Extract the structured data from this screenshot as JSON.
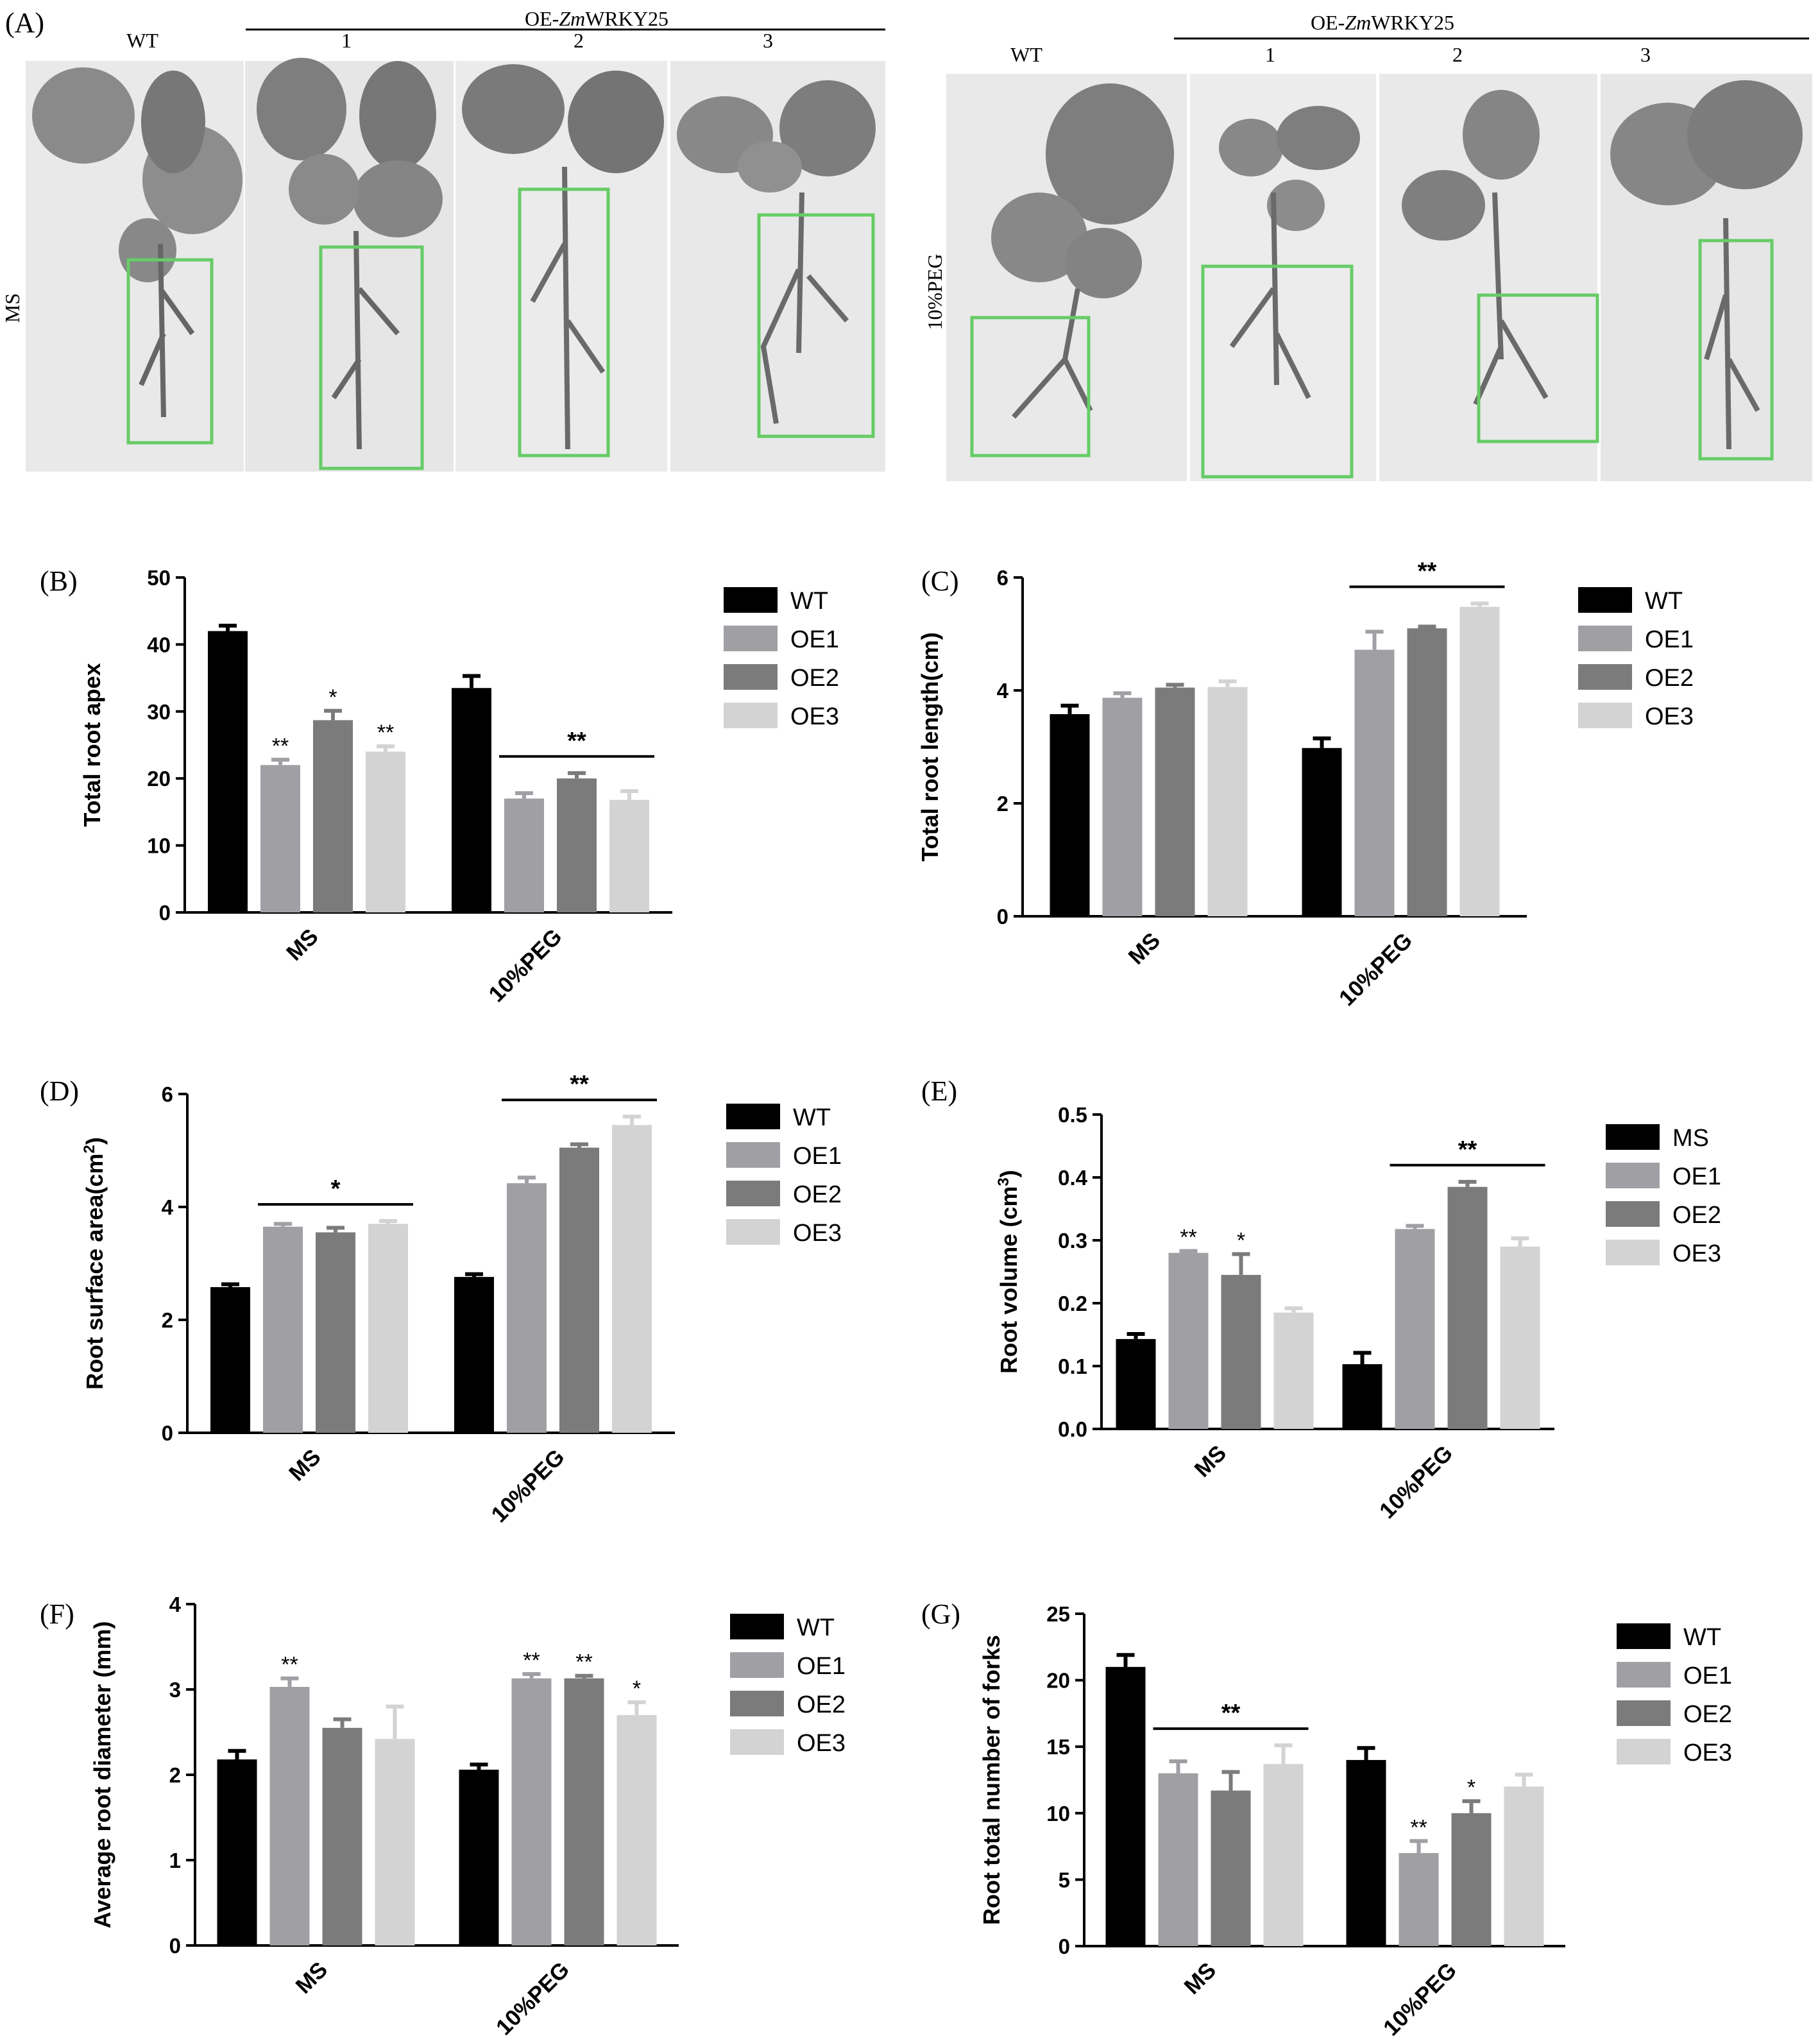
{
  "panel_a": {
    "label": "(A)",
    "left": {
      "wt_label": "WT",
      "group_label": "OE-",
      "group_label_italic": "Zm",
      "group_label_rest": "WRKY25",
      "line_labels": [
        "1",
        "2",
        "3"
      ],
      "condition_label": "MS"
    },
    "right": {
      "wt_label": "WT",
      "group_label": "OE-",
      "group_label_italic": "Zm",
      "group_label_rest": "WRKY25",
      "line_labels": [
        "1",
        "2",
        "3"
      ],
      "condition_label": "10%PEG"
    },
    "colors": {
      "photo_bg": "#e9e9e9",
      "leaf": "#8a8a8a",
      "root_box": "#66cc66"
    }
  },
  "colors": {
    "WT": "#000000",
    "OE1": "#a0a0a4",
    "OE2": "#7b7b7b",
    "OE3": "#d3d3d3"
  },
  "chart_data": [
    {
      "id": "B",
      "panel_label": "(B)",
      "type": "bar",
      "ylabel": "Total root apex",
      "ylabel_sup": "",
      "ylabel_suffix": "",
      "ylim": [
        0,
        50
      ],
      "yticks": [
        "0",
        "10",
        "20",
        "30",
        "40",
        "50"
      ],
      "categories": [
        "MS",
        "10%PEG"
      ],
      "series": [
        {
          "name": "WT",
          "values": [
            42.0,
            33.5
          ],
          "errors": [
            0.8,
            1.8
          ]
        },
        {
          "name": "OE1",
          "values": [
            22.0,
            17.0
          ],
          "errors": [
            0.8,
            0.8
          ]
        },
        {
          "name": "OE2",
          "values": [
            28.7,
            20.0
          ],
          "errors": [
            1.4,
            0.8
          ]
        },
        {
          "name": "OE3",
          "values": [
            24.0,
            16.8
          ],
          "errors": [
            0.8,
            1.3
          ]
        }
      ],
      "annotations": [
        {
          "text": "**",
          "category": 0,
          "series": 1
        },
        {
          "text": "*",
          "category": 0,
          "series": 2
        },
        {
          "text": "**",
          "category": 0,
          "series": 3
        },
        {
          "text": "**",
          "bracket": {
            "category": 1,
            "from_series": 1,
            "to_series": 3
          }
        }
      ]
    },
    {
      "id": "C",
      "panel_label": "(C)",
      "type": "bar",
      "ylabel": "Total root length(cm)",
      "ylabel_sup": "",
      "ylabel_suffix": "",
      "ylim": [
        0,
        6
      ],
      "yticks": [
        "0",
        "2",
        "4",
        "6"
      ],
      "categories": [
        "MS",
        "10%PEG"
      ],
      "series": [
        {
          "name": "WT",
          "values": [
            3.58,
            2.98
          ],
          "errors": [
            0.15,
            0.17
          ]
        },
        {
          "name": "OE1",
          "values": [
            3.87,
            4.72
          ],
          "errors": [
            0.08,
            0.32
          ]
        },
        {
          "name": "OE2",
          "values": [
            4.05,
            5.1
          ],
          "errors": [
            0.05,
            0.03
          ]
        },
        {
          "name": "OE3",
          "values": [
            4.06,
            5.48
          ],
          "errors": [
            0.1,
            0.06
          ]
        }
      ],
      "annotations": [
        {
          "text": "**",
          "bracket": {
            "category": 1,
            "from_series": 1,
            "to_series": 3
          }
        }
      ]
    },
    {
      "id": "D",
      "panel_label": "(D)",
      "type": "bar",
      "ylabel": "Root surface area(cm",
      "ylabel_sup": "2",
      "ylabel_suffix": ")",
      "ylim": [
        0,
        6
      ],
      "yticks": [
        "0",
        "2",
        "4",
        "6"
      ],
      "categories": [
        "MS",
        "10%PEG"
      ],
      "series": [
        {
          "name": "WT",
          "values": [
            2.58,
            2.76
          ],
          "errors": [
            0.05,
            0.05
          ]
        },
        {
          "name": "OE1",
          "values": [
            3.65,
            4.42
          ],
          "errors": [
            0.05,
            0.1
          ]
        },
        {
          "name": "OE2",
          "values": [
            3.55,
            5.05
          ],
          "errors": [
            0.08,
            0.06
          ]
        },
        {
          "name": "OE3",
          "values": [
            3.7,
            5.45
          ],
          "errors": [
            0.05,
            0.15
          ]
        }
      ],
      "annotations": [
        {
          "text": "*",
          "bracket": {
            "category": 0,
            "from_series": 1,
            "to_series": 3
          }
        },
        {
          "text": "**",
          "bracket": {
            "category": 1,
            "from_series": 1,
            "to_series": 3
          }
        }
      ]
    },
    {
      "id": "E",
      "panel_label": "(E)",
      "type": "bar",
      "ylabel": "Root volume (cm",
      "ylabel_sup": "3",
      "ylabel_suffix": ")",
      "ylim": [
        0,
        0.5
      ],
      "yticks": [
        "0.0",
        "0.1",
        "0.2",
        "0.3",
        "0.4",
        "0.5"
      ],
      "categories": [
        "MS",
        "10%PEG"
      ],
      "series": [
        {
          "name": "MS",
          "values": [
            0.143,
            0.103
          ],
          "errors": [
            0.008,
            0.018
          ]
        },
        {
          "name": "OE1",
          "values": [
            0.28,
            0.318
          ],
          "errors": [
            0.003,
            0.005
          ]
        },
        {
          "name": "OE2",
          "values": [
            0.245,
            0.385
          ],
          "errors": [
            0.033,
            0.008
          ]
        },
        {
          "name": "OE3",
          "values": [
            0.185,
            0.29
          ],
          "errors": [
            0.007,
            0.013
          ]
        }
      ],
      "annotations": [
        {
          "text": "**",
          "category": 0,
          "series": 1
        },
        {
          "text": "*",
          "category": 0,
          "series": 2
        },
        {
          "text": "**",
          "bracket": {
            "category": 1,
            "from_series": 1,
            "to_series": 3
          }
        }
      ]
    },
    {
      "id": "F",
      "panel_label": "(F)",
      "type": "bar",
      "ylabel": "Average root diameter (mm)",
      "ylabel_sup": "",
      "ylabel_suffix": "",
      "ylim": [
        0,
        4
      ],
      "yticks": [
        "0",
        "1",
        "2",
        "3",
        "4"
      ],
      "categories": [
        "MS",
        "10%PEG"
      ],
      "series": [
        {
          "name": "WT",
          "values": [
            2.18,
            2.06
          ],
          "errors": [
            0.1,
            0.06
          ]
        },
        {
          "name": "OE1",
          "values": [
            3.03,
            3.13
          ],
          "errors": [
            0.1,
            0.05
          ]
        },
        {
          "name": "OE2",
          "values": [
            2.55,
            3.13
          ],
          "errors": [
            0.1,
            0.03
          ]
        },
        {
          "name": "OE3",
          "values": [
            2.42,
            2.7
          ],
          "errors": [
            0.38,
            0.15
          ]
        }
      ],
      "annotations": [
        {
          "text": "**",
          "category": 0,
          "series": 1
        },
        {
          "text": "**",
          "category": 1,
          "series": 1
        },
        {
          "text": "**",
          "category": 1,
          "series": 2
        },
        {
          "text": "*",
          "category": 1,
          "series": 3
        }
      ]
    },
    {
      "id": "G",
      "panel_label": "(G)",
      "type": "bar",
      "ylabel": "Root total number of forks",
      "ylabel_sup": "",
      "ylabel_suffix": "",
      "ylim": [
        0,
        25
      ],
      "yticks": [
        "0",
        "5",
        "10",
        "15",
        "20",
        "25"
      ],
      "categories": [
        "MS",
        "10%PEG"
      ],
      "series": [
        {
          "name": "WT",
          "values": [
            21.0,
            14.0
          ],
          "errors": [
            0.9,
            0.9
          ]
        },
        {
          "name": "OE1",
          "values": [
            13.0,
            7.0
          ],
          "errors": [
            0.9,
            0.9
          ]
        },
        {
          "name": "OE2",
          "values": [
            11.7,
            10.0
          ],
          "errors": [
            1.4,
            0.9
          ]
        },
        {
          "name": "OE3",
          "values": [
            13.7,
            12.0
          ],
          "errors": [
            1.4,
            0.9
          ]
        }
      ],
      "annotations": [
        {
          "text": "**",
          "bracket": {
            "category": 0,
            "from_series": 1,
            "to_series": 3
          }
        },
        {
          "text": "**",
          "category": 1,
          "series": 1
        },
        {
          "text": "*",
          "category": 1,
          "series": 2
        }
      ]
    }
  ]
}
